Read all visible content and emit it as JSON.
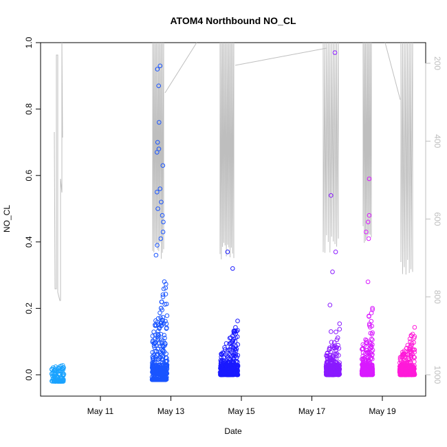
{
  "chart_data": {
    "type": "scatter",
    "title": "ATOM4 Northbound NO_CL",
    "xlabel": "Date",
    "ylabel": "NO_CL",
    "x_ticks": [
      "May 11",
      "May 13",
      "May 15",
      "May 17",
      "May 19"
    ],
    "y_ticks": [
      "0.0",
      "0.2",
      "0.4",
      "0.6",
      "0.8",
      "1.0"
    ],
    "ylim": [
      0,
      1.0
    ],
    "y2_ticks": [
      "200",
      "400",
      "600",
      "800",
      "1000"
    ],
    "y2_reversed": true,
    "grid": false,
    "colors": {
      "line": "#bebebe",
      "axis": "#000000",
      "right_axis": "#bebebe"
    },
    "point_clusters": [
      {
        "date": "May 10",
        "color": "#1aa3ff",
        "y_min": -0.02,
        "y_max": 0.03,
        "outliers": []
      },
      {
        "date": "May 12",
        "color": "#1a55ff",
        "y_min": -0.015,
        "y_max": 0.34,
        "outliers": [
          0.93,
          0.92,
          0.87,
          0.76,
          0.7,
          0.68,
          0.67,
          0.63,
          0.56,
          0.55,
          0.52,
          0.5,
          0.48,
          0.46,
          0.43,
          0.41,
          0.39,
          0.36
        ]
      },
      {
        "date": "May 14",
        "color": "#1a1aff",
        "y_min": 0.0,
        "y_max": 0.165,
        "outliers": [
          0.37,
          0.32
        ]
      },
      {
        "date": "May 17",
        "color": "#8a1aff",
        "y_min": 0.0,
        "y_max": 0.165,
        "outliers": [
          0.97,
          0.54,
          0.37,
          0.31,
          0.21,
          0.13
        ]
      },
      {
        "date": "May 18",
        "color": "#d91aff",
        "y_min": 0.0,
        "y_max": 0.23,
        "outliers": [
          0.59,
          0.48,
          0.46,
          0.43,
          0.41,
          0.28
        ]
      },
      {
        "date": "May 19",
        "color": "#ff1ad9",
        "y_min": 0.0,
        "y_max": 0.145,
        "outliers": []
      }
    ]
  }
}
